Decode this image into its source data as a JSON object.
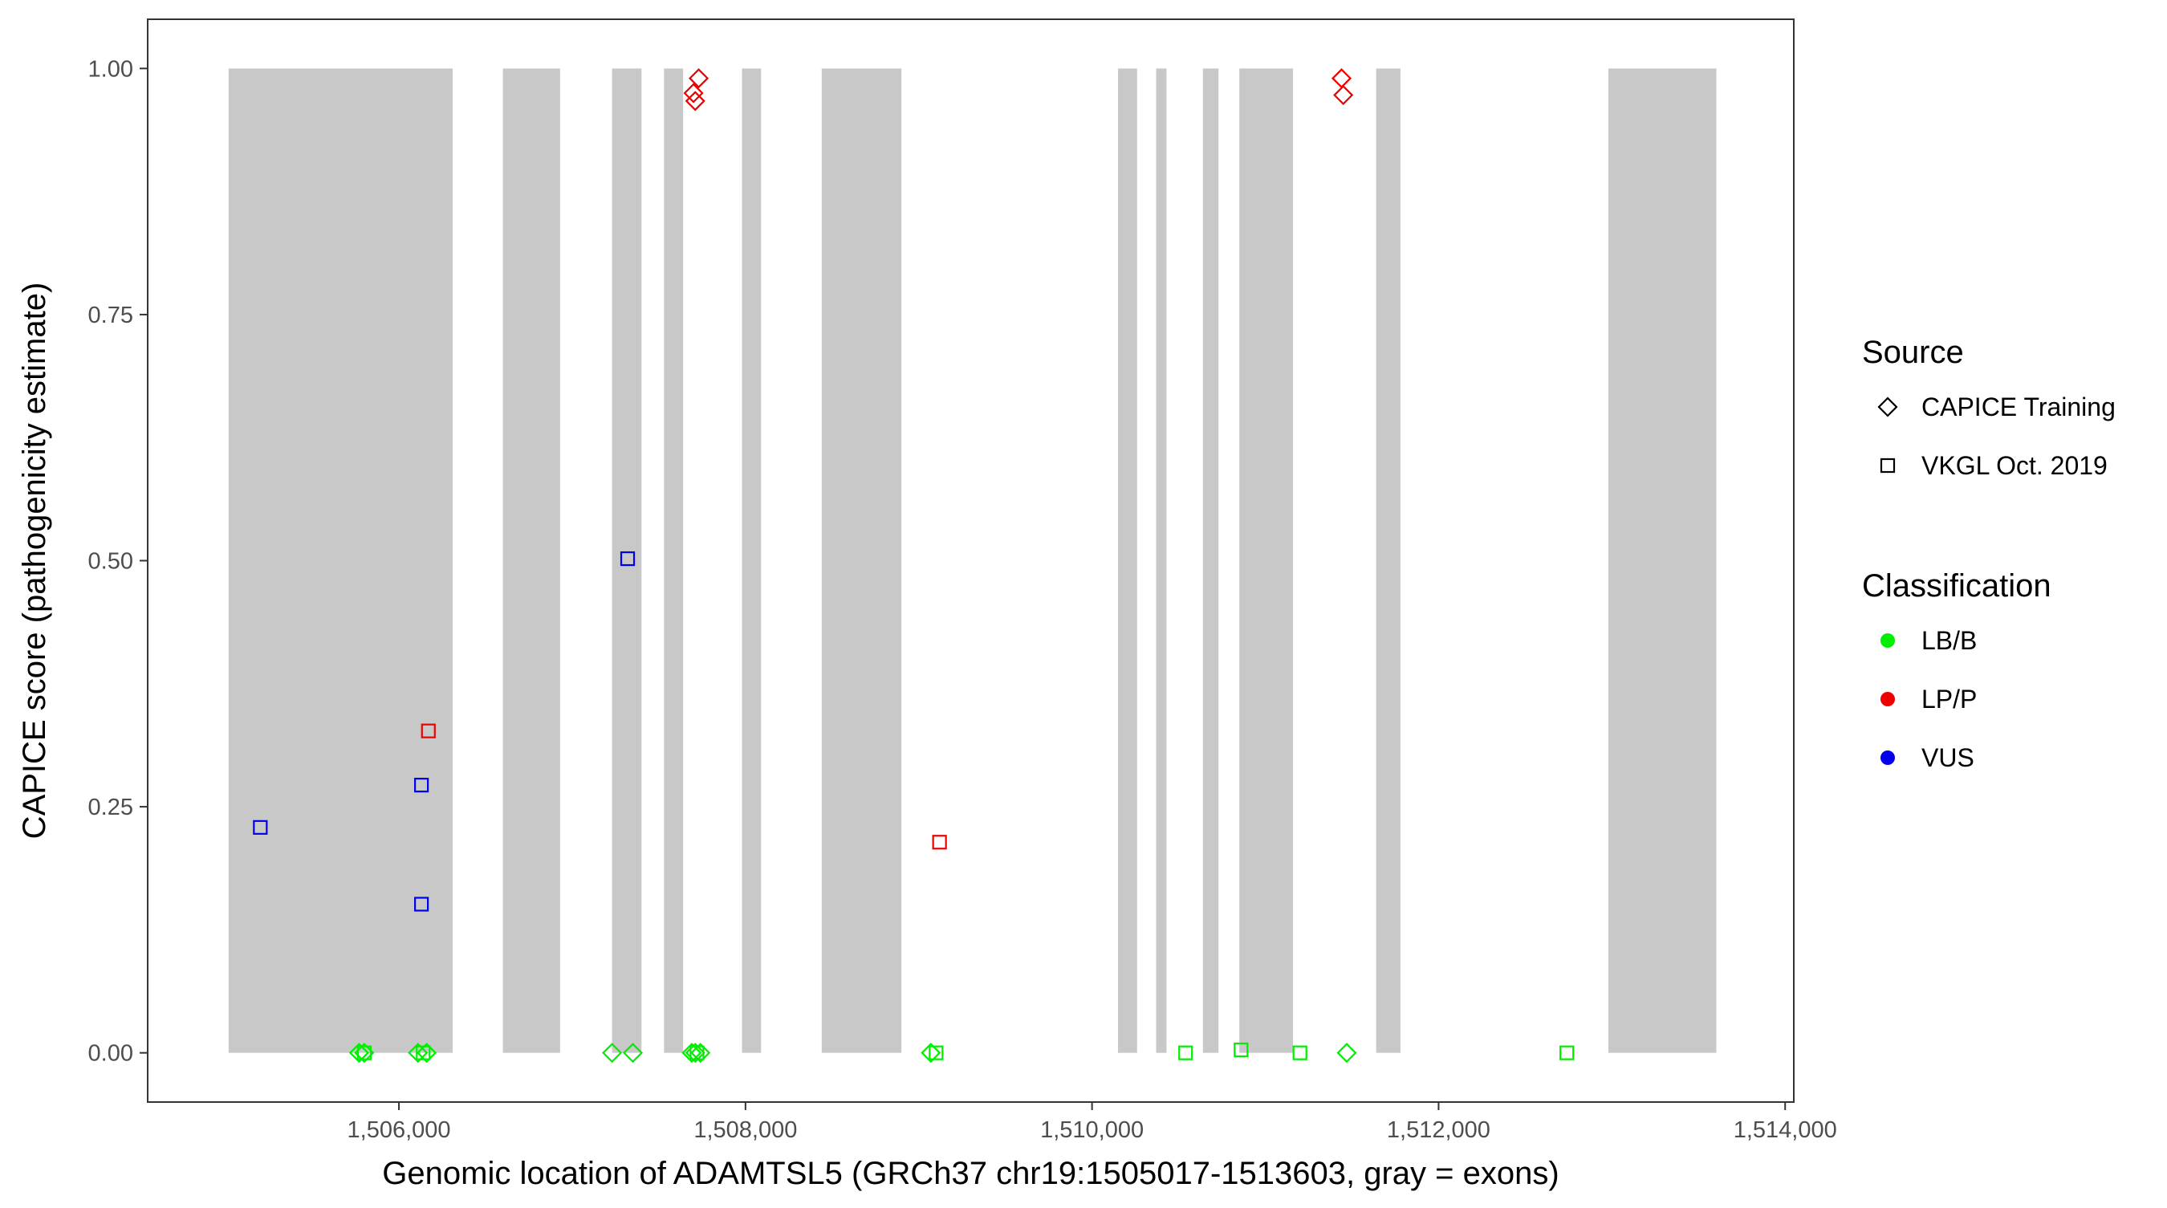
{
  "chart_data": {
    "type": "scatter",
    "xlabel": "Genomic location of ADAMTSL5 (GRCh37 chr19:1505017-1513603, gray = exons)",
    "ylabel": "CAPICE score (pathogenicity estimate)",
    "xlim": [
      1504550,
      1514050
    ],
    "ylim": [
      -0.05,
      1.05
    ],
    "x_ticks": [
      1506000,
      1508000,
      1510000,
      1512000,
      1514000
    ],
    "x_tick_labels": [
      "1,506,000",
      "1,508,000",
      "1,510,000",
      "1,512,000",
      "1,514,000"
    ],
    "y_ticks": [
      0,
      0.25,
      0.5,
      0.75,
      1.0
    ],
    "y_tick_labels": [
      "0.00",
      "0.25",
      "0.50",
      "0.75",
      "1.00"
    ],
    "grid": false,
    "exons": [
      [
        1505017,
        1506310
      ],
      [
        1506600,
        1506930
      ],
      [
        1507230,
        1507400
      ],
      [
        1507530,
        1507640
      ],
      [
        1507980,
        1508090
      ],
      [
        1508440,
        1508900
      ],
      [
        1510150,
        1510260
      ],
      [
        1510370,
        1510430
      ],
      [
        1510640,
        1510730
      ],
      [
        1510850,
        1511160
      ],
      [
        1511640,
        1511780
      ],
      [
        1512980,
        1513603
      ]
    ],
    "exon_color": "#c8c8c8",
    "legend": {
      "position": "right",
      "source": {
        "title": "Source",
        "items": [
          {
            "label": "CAPICE Training",
            "shape": "diamond"
          },
          {
            "label": "VKGL Oct. 2019",
            "shape": "square"
          }
        ]
      },
      "classification": {
        "title": "Classification",
        "items": [
          {
            "label": "LB/B",
            "color": "#00ee00"
          },
          {
            "label": "LP/P",
            "color": "#ee0000"
          },
          {
            "label": "VUS",
            "color": "#0000ee"
          }
        ]
      }
    },
    "series": [
      {
        "name": "CAPICE Training",
        "shape": "diamond",
        "points": [
          {
            "x": 1507730,
            "y": 0.99,
            "class": "LP/P"
          },
          {
            "x": 1507700,
            "y": 0.975,
            "class": "LP/P"
          },
          {
            "x": 1507710,
            "y": 0.967,
            "class": "LP/P"
          },
          {
            "x": 1511440,
            "y": 0.99,
            "class": "LP/P"
          },
          {
            "x": 1511450,
            "y": 0.973,
            "class": "LP/P"
          },
          {
            "x": 1505770,
            "y": 0.0,
            "class": "LB/B"
          },
          {
            "x": 1505800,
            "y": 0.0,
            "class": "LB/B"
          },
          {
            "x": 1506110,
            "y": 0.0,
            "class": "LB/B"
          },
          {
            "x": 1506160,
            "y": 0.0,
            "class": "LB/B"
          },
          {
            "x": 1507230,
            "y": 0.0,
            "class": "LB/B"
          },
          {
            "x": 1507350,
            "y": 0.0,
            "class": "LB/B"
          },
          {
            "x": 1507690,
            "y": 0.0,
            "class": "LB/B"
          },
          {
            "x": 1507710,
            "y": 0.0,
            "class": "LB/B"
          },
          {
            "x": 1507740,
            "y": 0.0,
            "class": "LB/B"
          },
          {
            "x": 1509070,
            "y": 0.0,
            "class": "LB/B"
          },
          {
            "x": 1511470,
            "y": 0.0,
            "class": "LB/B"
          }
        ]
      },
      {
        "name": "VKGL Oct. 2019",
        "shape": "square",
        "points": [
          {
            "x": 1507320,
            "y": 0.502,
            "class": "VUS"
          },
          {
            "x": 1506170,
            "y": 0.327,
            "class": "LP/P"
          },
          {
            "x": 1506130,
            "y": 0.272,
            "class": "VUS"
          },
          {
            "x": 1505200,
            "y": 0.229,
            "class": "VUS"
          },
          {
            "x": 1509120,
            "y": 0.214,
            "class": "LP/P"
          },
          {
            "x": 1506130,
            "y": 0.151,
            "class": "VUS"
          },
          {
            "x": 1505800,
            "y": 0.0,
            "class": "LB/B"
          },
          {
            "x": 1506140,
            "y": 0.0,
            "class": "LB/B"
          },
          {
            "x": 1507720,
            "y": 0.0,
            "class": "LB/B"
          },
          {
            "x": 1509100,
            "y": 0.0,
            "class": "LB/B"
          },
          {
            "x": 1510540,
            "y": 0.0,
            "class": "LB/B"
          },
          {
            "x": 1510860,
            "y": 0.003,
            "class": "LB/B"
          },
          {
            "x": 1511200,
            "y": 0.0,
            "class": "LB/B"
          },
          {
            "x": 1512740,
            "y": 0.0,
            "class": "LB/B"
          }
        ]
      }
    ]
  }
}
